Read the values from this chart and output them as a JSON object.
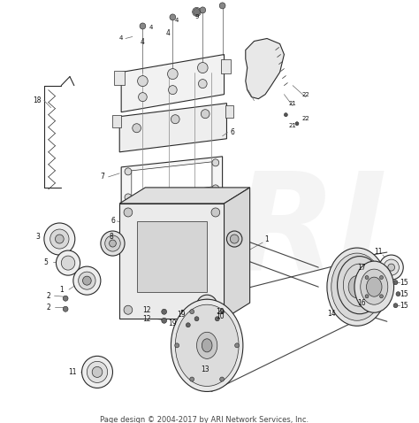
{
  "footer": "Page design © 2004-2017 by ARI Network Services, Inc.",
  "background_color": "#ffffff",
  "figsize": [
    4.74,
    4.78
  ],
  "dpi": 100,
  "footer_fontsize": 6.0,
  "footer_color": "#444444",
  "line_color": "#2a2a2a",
  "lc": "#2a2a2a",
  "lw_main": 0.8,
  "lw_thin": 0.5,
  "lw_thick": 1.1
}
